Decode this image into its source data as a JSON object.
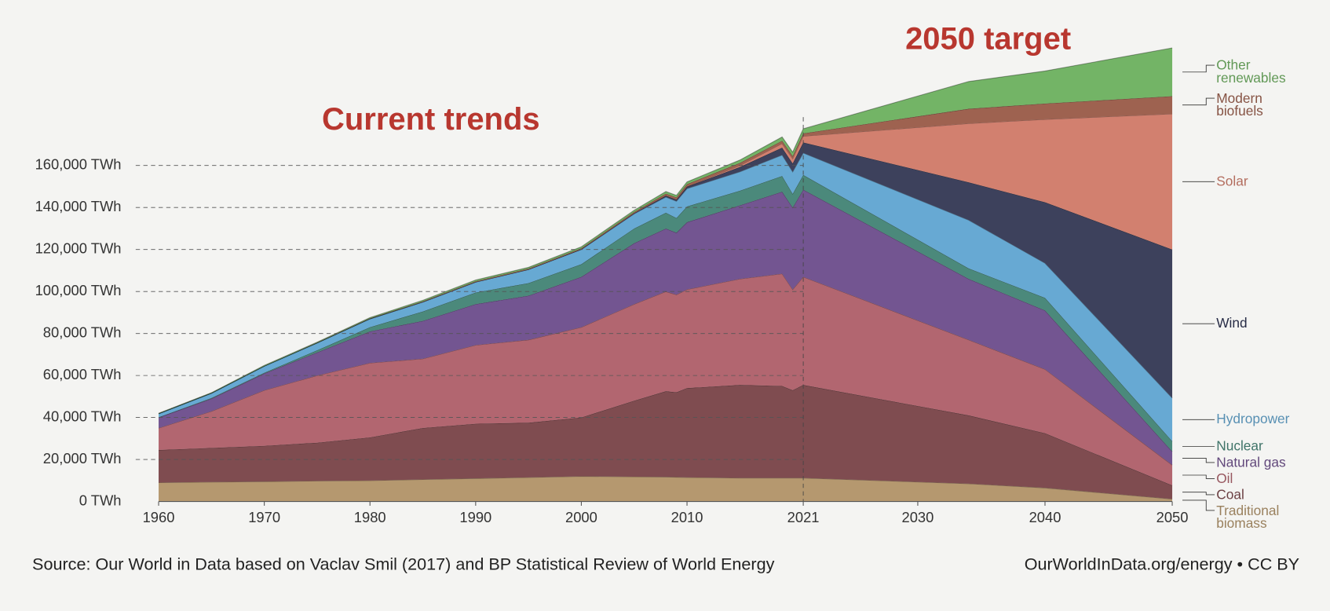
{
  "chart_data": {
    "type": "stacked_area",
    "annotations": {
      "left": "Current trends",
      "right": "2050 target",
      "source": "Source: Our World in Data based on Vaclav Smil (2017) and BP Statistical Review of World Energy",
      "credit": "OurWorldInData.org/energy • CC BY"
    },
    "divider_x": 2021,
    "x": [
      1960,
      1965,
      1970,
      1975,
      1980,
      1985,
      1990,
      1995,
      2000,
      2005,
      2008,
      2009,
      2010,
      2015,
      2019,
      2020,
      2021,
      2034,
      2040,
      2050
    ],
    "xlim": [
      1960,
      2050
    ],
    "xticks": [
      1960,
      1970,
      1980,
      1990,
      2000,
      2010,
      2021,
      2030,
      2040,
      2050
    ],
    "ylim": [
      0,
      220000
    ],
    "yticks": [
      {
        "value": 0,
        "label": "0 TWh"
      },
      {
        "value": 20000,
        "label": "20,000 TWh"
      },
      {
        "value": 40000,
        "label": "40,000 TWh"
      },
      {
        "value": 60000,
        "label": "60,000 TWh"
      },
      {
        "value": 80000,
        "label": "80,000 TWh"
      },
      {
        "value": 100000,
        "label": "100,000 TWh"
      },
      {
        "value": 120000,
        "label": "120,000 TWh"
      },
      {
        "value": 140000,
        "label": "140,000 TWh"
      },
      {
        "value": 160000,
        "label": "160,000 TWh"
      }
    ],
    "grid": true,
    "series": [
      {
        "name": "Traditional biomass",
        "color": "#b5986f",
        "values": [
          9000,
          9300,
          9500,
          9800,
          10000,
          10500,
          11000,
          11500,
          12000,
          11800,
          11700,
          11600,
          11500,
          11200,
          11200,
          11200,
          11200,
          8500,
          6500,
          1200
        ]
      },
      {
        "name": "Coal",
        "color": "#7f4c50",
        "values": [
          15500,
          16200,
          17000,
          18200,
          20500,
          24500,
          26000,
          26000,
          28000,
          36200,
          40800,
          40400,
          42500,
          44300,
          43800,
          41800,
          44300,
          32500,
          26000,
          6500
        ]
      },
      {
        "name": "Oil",
        "color": "#b26670",
        "values": [
          10500,
          17500,
          26500,
          32000,
          35500,
          33000,
          37500,
          39500,
          43000,
          46000,
          47500,
          46500,
          47000,
          50500,
          53500,
          48000,
          51500,
          36000,
          30500,
          9700
        ]
      },
      {
        "name": "Natural gas",
        "color": "#735591",
        "values": [
          5000,
          6000,
          8000,
          11000,
          15000,
          18000,
          19500,
          21000,
          24000,
          29000,
          30000,
          29500,
          32000,
          35000,
          39000,
          39000,
          41500,
          29000,
          28000,
          6400
        ]
      },
      {
        "name": "Nuclear",
        "color": "#4b897b",
        "values": [
          100,
          300,
          300,
          1000,
          2000,
          4500,
          5500,
          6000,
          6000,
          7000,
          7500,
          7000,
          7500,
          7000,
          7500,
          6500,
          7000,
          5000,
          6000,
          4900
        ]
      },
      {
        "name": "Hydropower",
        "color": "#67a9d3",
        "values": [
          1700,
          2300,
          3200,
          3500,
          4000,
          4500,
          5000,
          6500,
          7000,
          7000,
          7500,
          8000,
          8500,
          9000,
          10000,
          10500,
          10500,
          23000,
          16500,
          20600
        ]
      },
      {
        "name": "Wind",
        "color": "#3d415c",
        "values": [
          0,
          0,
          0,
          0,
          0,
          0,
          0,
          0,
          100,
          300,
          600,
          700,
          900,
          2300,
          3500,
          4000,
          5000,
          18000,
          29000,
          70700
        ]
      },
      {
        "name": "Solar",
        "color": "#d2806f",
        "values": [
          0,
          0,
          0,
          0,
          0,
          0,
          0,
          0,
          0,
          0,
          100,
          100,
          100,
          700,
          2000,
          2300,
          3000,
          28000,
          39500,
          64600
        ]
      },
      {
        "name": "Modern biofuels",
        "color": "#9e6250",
        "values": [
          0,
          0,
          0,
          100,
          200,
          300,
          400,
          400,
          500,
          600,
          900,
          1000,
          1100,
          1200,
          1300,
          1200,
          1300,
          7000,
          7500,
          8400
        ]
      },
      {
        "name": "Other renewables",
        "color": "#73b466",
        "values": [
          200,
          200,
          300,
          300,
          400,
          500,
          600,
          600,
          700,
          800,
          1000,
          1000,
          1100,
          1400,
          1800,
          1900,
          2200,
          13000,
          15500,
          23000
        ]
      }
    ]
  }
}
